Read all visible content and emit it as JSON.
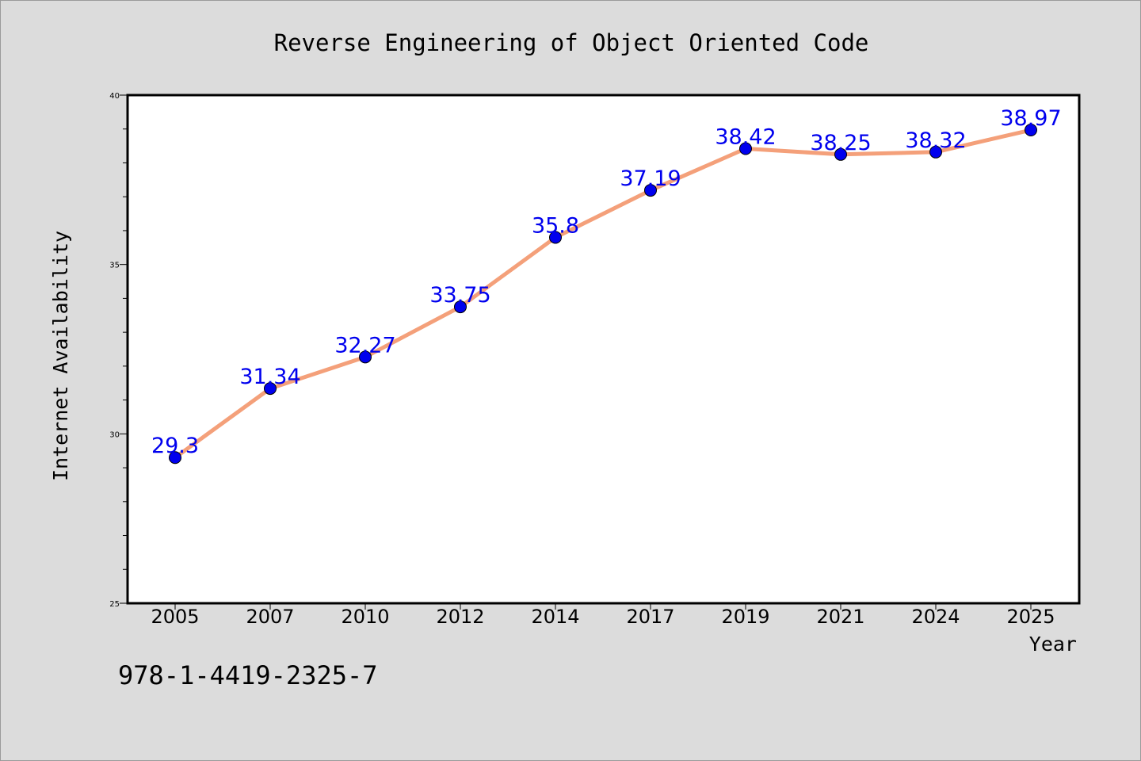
{
  "chart_data": {
    "type": "line",
    "title": "Reverse Engineering of Object Oriented Code",
    "xlabel": "Year",
    "ylabel": "Internet Availability",
    "categories": [
      "2005",
      "2007",
      "2010",
      "2012",
      "2014",
      "2017",
      "2019",
      "2021",
      "2024",
      "2025"
    ],
    "series": [
      {
        "values": [
          29.3,
          31.34,
          32.27,
          33.75,
          35.8,
          37.19,
          38.42,
          38.25,
          38.32,
          38.97
        ],
        "labels": [
          "29.3",
          "31.34",
          "32.27",
          "33.75",
          "35.8",
          "37.19",
          "38.42",
          "38.25",
          "38.32",
          "38.97"
        ],
        "line_color": "#f4a07a",
        "marker_color": "#0000ee",
        "label_color": "#0000ee"
      }
    ],
    "ylim": [
      25,
      40
    ],
    "yticks_major": [
      25,
      30,
      35,
      40
    ],
    "yticks_major_labels": [
      "25",
      "30",
      "35",
      "40"
    ],
    "yticks_minor_step": 1,
    "grid": false,
    "legend": "none",
    "background": "#dcdcdc",
    "plot_background": "#ffffff"
  },
  "footnote": "978-1-4419-2325-7"
}
